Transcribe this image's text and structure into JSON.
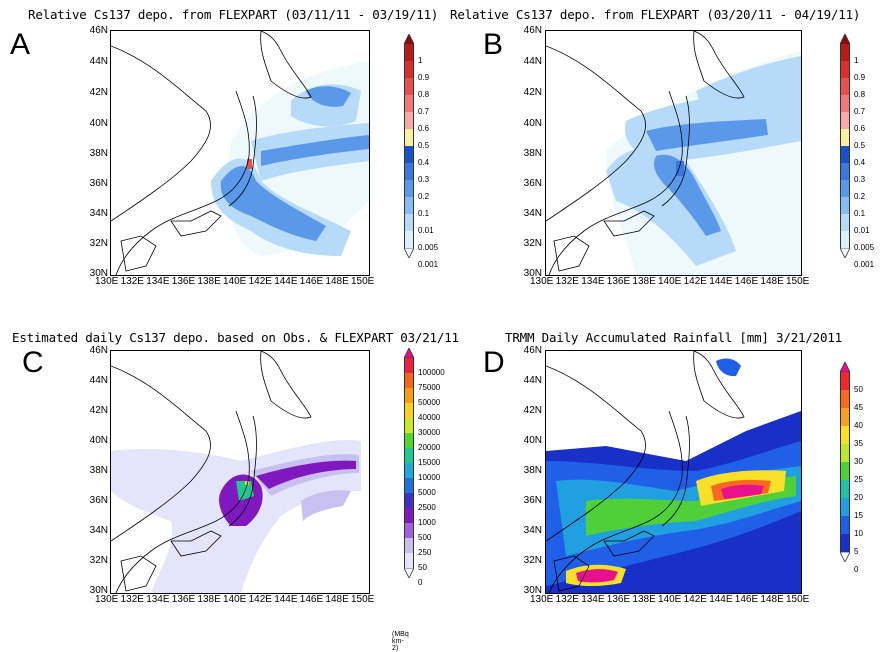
{
  "panels": {
    "A": {
      "letter": "A",
      "title": "Relative Cs137 depo. from FLEXPART (03/11/11 - 03/19/11)",
      "colorbar": {
        "labels": [
          "1",
          "0.9",
          "0.8",
          "0.7",
          "0.6",
          "0.5",
          "0.4",
          "0.3",
          "0.2",
          "0.1",
          "0.01",
          "0.005",
          "0.001"
        ],
        "colors": [
          "#8b0a0a",
          "#b81a1a",
          "#d83030",
          "#e85050",
          "#f07878",
          "#f8a8a8",
          "#f8f0a0",
          "#1a50c8",
          "#3a78e0",
          "#5a98ea",
          "#88bcf4",
          "#b6daf8",
          "#dcf0fa",
          "#f4fbfd"
        ]
      }
    },
    "B": {
      "letter": "B",
      "title": "Relative Cs137 depo. from FLEXPART (03/20/11 - 04/19/11)",
      "colorbar": {
        "labels": [
          "1",
          "0.9",
          "0.8",
          "0.7",
          "0.6",
          "0.5",
          "0.4",
          "0.3",
          "0.2",
          "0.1",
          "0.01",
          "0.005",
          "0.001"
        ],
        "colors": [
          "#8b0a0a",
          "#b81a1a",
          "#d83030",
          "#e85050",
          "#f07878",
          "#f8a8a8",
          "#f8f0a0",
          "#1a50c8",
          "#3a78e0",
          "#5a98ea",
          "#88bcf4",
          "#b6daf8",
          "#dcf0fa",
          "#f4fbfd"
        ]
      }
    },
    "C": {
      "letter": "C",
      "title": "Estimated daily Cs137 depo. based on Obs. & FLEXPART 03/21/11",
      "unit": "(MBq km-2)",
      "colorbar": {
        "labels": [
          "100000",
          "75000",
          "50000",
          "40000",
          "30000",
          "20000",
          "15000",
          "10000",
          "5000",
          "2500",
          "1000",
          "500",
          "250",
          "50",
          "0"
        ],
        "colors": [
          "#e0108c",
          "#f02040",
          "#f86418",
          "#f89c18",
          "#f8d020",
          "#c8e828",
          "#50d830",
          "#20c890",
          "#20a8d8",
          "#2070e0",
          "#4030c8",
          "#8018c0",
          "#a060e0",
          "#c8c0f0",
          "#e4e4fa",
          "#f8f8fe"
        ]
      }
    },
    "D": {
      "letter": "D",
      "title": "TRMM Daily Accumulated Rainfall [mm] 3/21/2011",
      "colorbar": {
        "labels": [
          "50",
          "45",
          "40",
          "35",
          "30",
          "25",
          "20",
          "15",
          "10",
          "5",
          "0"
        ],
        "colors": [
          "#e8108c",
          "#f02828",
          "#f86820",
          "#f8a020",
          "#f8e028",
          "#b8e830",
          "#50d038",
          "#20c0a0",
          "#20a0e0",
          "#2060e8",
          "#1830c8",
          "#ffffff"
        ]
      }
    }
  },
  "axes": {
    "lat_ticks": [
      "46N",
      "44N",
      "42N",
      "40N",
      "38N",
      "36N",
      "34N",
      "32N",
      "30N"
    ],
    "lon_ticks": [
      "130E",
      "132E",
      "134E",
      "136E",
      "138E",
      "140E",
      "142E",
      "144E",
      "146E",
      "148E",
      "150E"
    ],
    "lon_range": [
      130,
      150
    ],
    "lat_range": [
      30,
      46
    ]
  },
  "colors": {
    "land_outline": "#000000",
    "frame": "#000000"
  }
}
